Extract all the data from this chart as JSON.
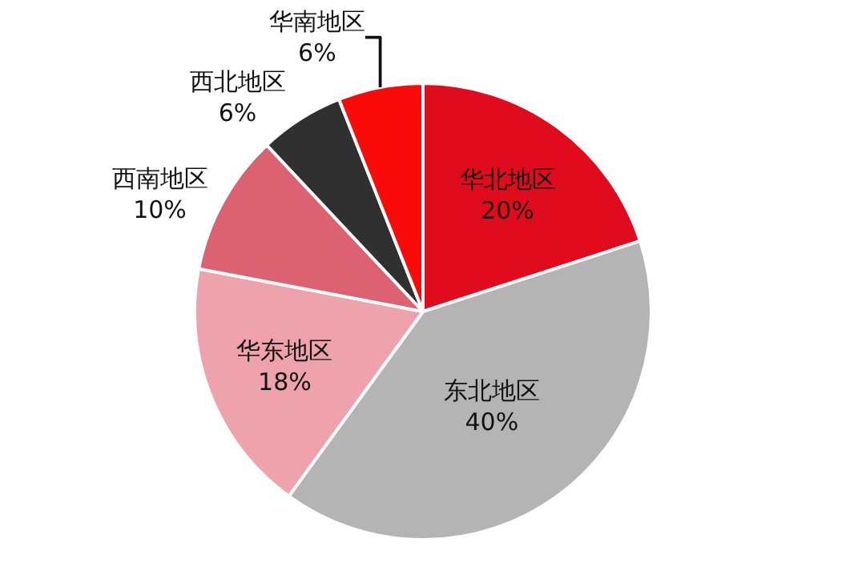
{
  "chart_data": {
    "type": "pie",
    "categories": [
      "华北地区",
      "东北地区",
      "华东地区",
      "西南地区",
      "西北地区",
      "华南地区"
    ],
    "values": [
      20,
      40,
      18,
      10,
      6,
      6
    ],
    "value_labels": [
      "20%",
      "40%",
      "18%",
      "10%",
      "6%",
      "6%"
    ],
    "colors": [
      "#e00b1c",
      "#b4b4b4",
      "#eea2ab",
      "#dc6272",
      "#303030",
      "#fb0a0a"
    ]
  }
}
